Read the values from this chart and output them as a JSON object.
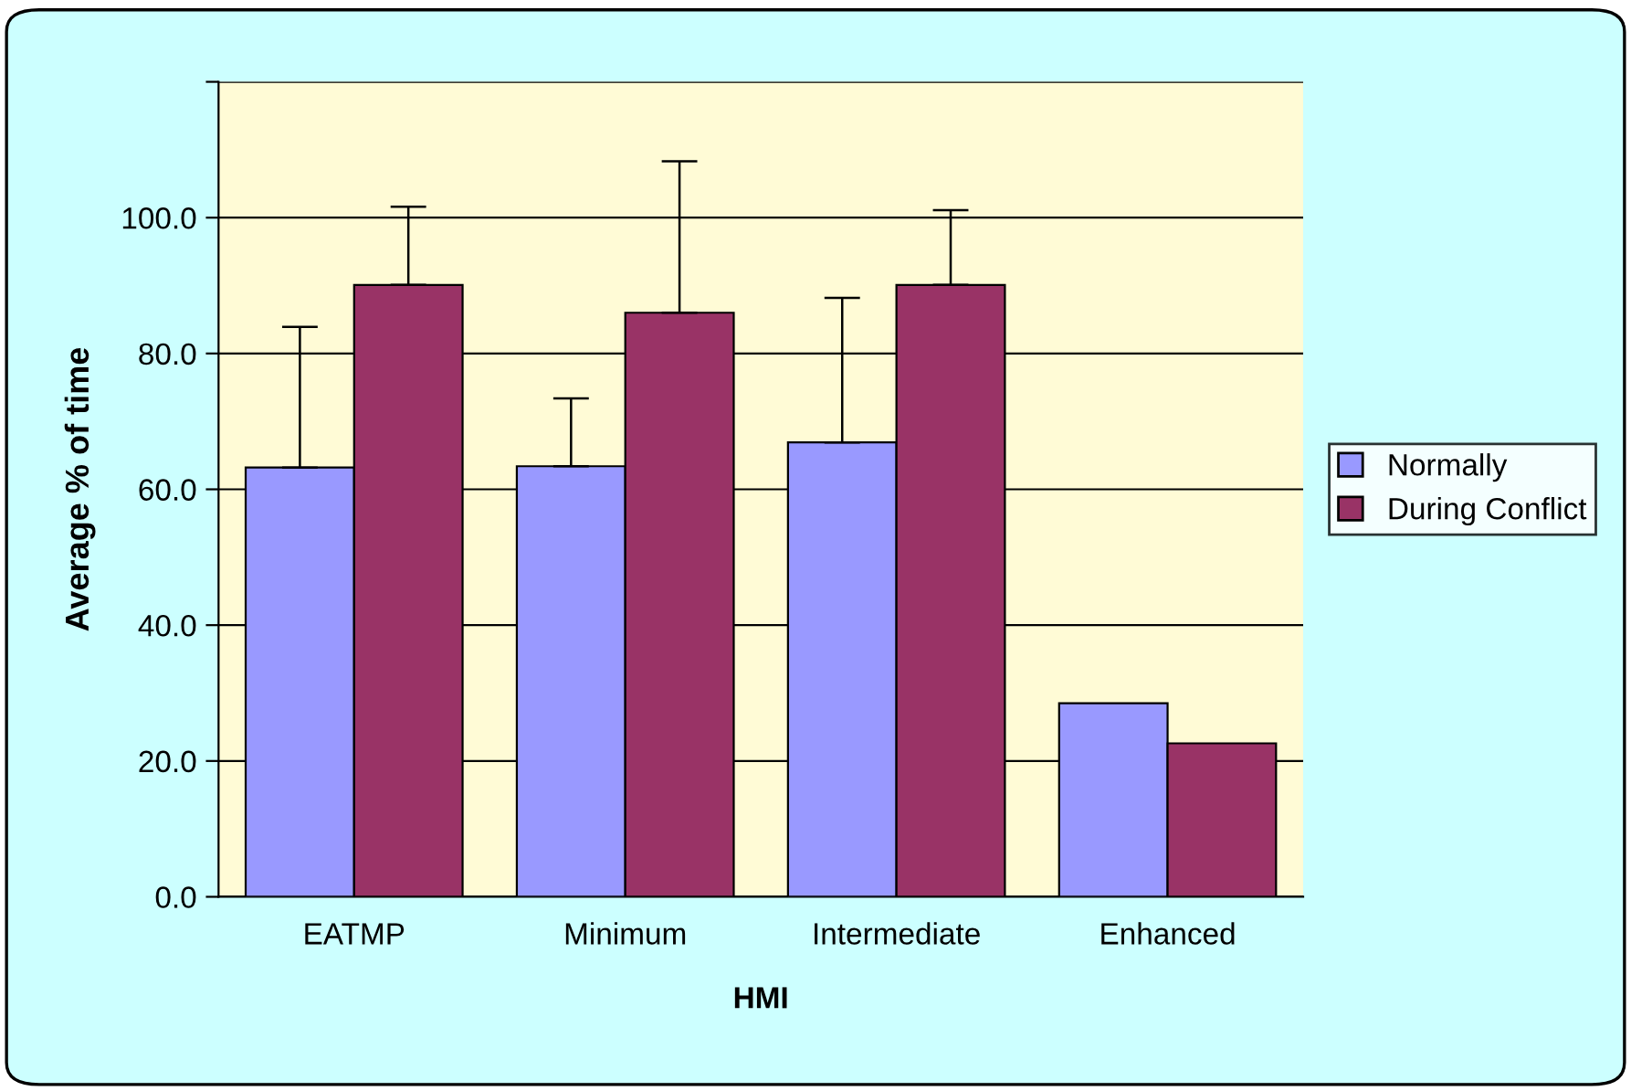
{
  "chart_data": {
    "type": "bar",
    "xlabel": "HMI",
    "ylabel": "Average % of time",
    "categories": [
      "EATMP",
      "Minimum",
      "Intermediate",
      "Enhanced"
    ],
    "series": [
      {
        "name": "Normally",
        "color": "#9999ff",
        "values": [
          63.2,
          63.4,
          66.9,
          28.5
        ],
        "errors": [
          [
            63.2,
            83.9
          ],
          [
            63.4,
            73.4
          ],
          [
            66.9,
            88.2
          ],
          null
        ]
      },
      {
        "name": "During Conflict",
        "color": "#993366",
        "values": [
          90.1,
          86.0,
          90.1,
          22.6
        ],
        "errors": [
          [
            90.1,
            101.6
          ],
          [
            86.0,
            108.3
          ],
          [
            90.1,
            101.1
          ],
          null
        ]
      }
    ],
    "ylim": [
      0,
      120
    ],
    "yticks": [
      {
        "value": 0,
        "label": "0.0"
      },
      {
        "value": 20,
        "label": "20.0"
      },
      {
        "value": 40,
        "label": "40.0"
      },
      {
        "value": 60,
        "label": "60.0"
      },
      {
        "value": 80,
        "label": "80.0"
      },
      {
        "value": 100,
        "label": "100.0"
      },
      {
        "value": 120,
        "label": null
      }
    ],
    "grid": "y",
    "legend": "right"
  }
}
